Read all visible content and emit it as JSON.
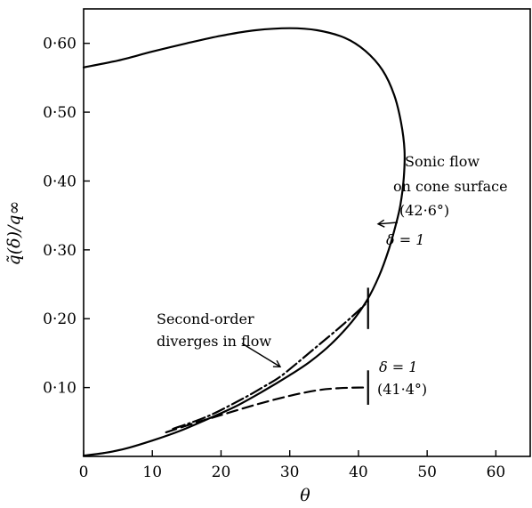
{
  "chart_data": {
    "type": "line",
    "title": "",
    "xlabel": "θ",
    "ylabel": "q̃(δ)/q∞",
    "xlim": [
      0,
      65
    ],
    "ylim": [
      0,
      0.65
    ],
    "grid": false,
    "x_ticks": [
      {
        "value": 0,
        "label": "0"
      },
      {
        "value": 10,
        "label": "10"
      },
      {
        "value": 20,
        "label": "20"
      },
      {
        "value": 30,
        "label": "30"
      },
      {
        "value": 40,
        "label": "40"
      },
      {
        "value": 50,
        "label": "50"
      },
      {
        "value": 60,
        "label": "60"
      }
    ],
    "y_ticks": [
      {
        "value": 0.1,
        "label": "0·10"
      },
      {
        "value": 0.2,
        "label": "0·20"
      },
      {
        "value": 0.3,
        "label": "0·30"
      },
      {
        "value": 0.4,
        "label": "0·40"
      },
      {
        "value": 0.5,
        "label": "0·50"
      },
      {
        "value": 0.6,
        "label": "0·60"
      }
    ],
    "series": [
      {
        "style": "solid",
        "points": [
          [
            0,
            0.565
          ],
          [
            5,
            0.575
          ],
          [
            10,
            0.588
          ],
          [
            15,
            0.6
          ],
          [
            20,
            0.611
          ],
          [
            25,
            0.619
          ],
          [
            30,
            0.622
          ],
          [
            34,
            0.619
          ],
          [
            38,
            0.608
          ],
          [
            41,
            0.589
          ],
          [
            43.5,
            0.561
          ],
          [
            45.2,
            0.525
          ],
          [
            46.2,
            0.485
          ],
          [
            46.7,
            0.445
          ],
          [
            46.6,
            0.405
          ],
          [
            46.1,
            0.365
          ],
          [
            45.4,
            0.335
          ],
          [
            44.4,
            0.3
          ],
          [
            43.0,
            0.262
          ],
          [
            41.2,
            0.226
          ],
          [
            39.0,
            0.195
          ],
          [
            36.0,
            0.163
          ],
          [
            33.0,
            0.138
          ],
          [
            30.0,
            0.118
          ],
          [
            26.0,
            0.094
          ],
          [
            22.0,
            0.072
          ],
          [
            18.0,
            0.054
          ],
          [
            14.0,
            0.037
          ],
          [
            10.0,
            0.023
          ],
          [
            6.0,
            0.011
          ],
          [
            3.0,
            0.005
          ],
          [
            0,
            0.001
          ]
        ]
      },
      {
        "style": "dash-dot",
        "points": [
          [
            13.0,
            0.04
          ],
          [
            18.0,
            0.058
          ],
          [
            23.0,
            0.083
          ],
          [
            26.0,
            0.1
          ],
          [
            28.5,
            0.115
          ],
          [
            31.0,
            0.135
          ],
          [
            34.0,
            0.16
          ],
          [
            37.0,
            0.185
          ],
          [
            39.5,
            0.207
          ],
          [
            41.4,
            0.225
          ]
        ]
      },
      {
        "style": "dashed",
        "points": [
          [
            12.0,
            0.035
          ],
          [
            16.0,
            0.048
          ],
          [
            20.0,
            0.06
          ],
          [
            25.0,
            0.075
          ],
          [
            30.0,
            0.088
          ],
          [
            34.0,
            0.096
          ],
          [
            37.0,
            0.099
          ],
          [
            40.0,
            0.1
          ],
          [
            41.4,
            0.1
          ]
        ]
      }
    ],
    "markers": [
      {
        "x": 41.4,
        "y_from": 0.185,
        "y_to": 0.245
      },
      {
        "x": 41.4,
        "y_from": 0.075,
        "y_to": 0.125
      }
    ],
    "annotations": [
      {
        "lines": [
          "Sonic flow",
          "on cone surface",
          "(42·6°)"
        ],
        "arrow_to": [
          42.6,
          0.335
        ]
      },
      {
        "lines": [
          "Second-order",
          "diverges in flow"
        ],
        "arrow_to": [
          29.0,
          0.125
        ]
      },
      {
        "lines": [
          "δ = 1"
        ],
        "for_series": "dash-dot"
      },
      {
        "lines": [
          "δ = 1",
          "(41·4°)"
        ],
        "for_series": "dashed"
      }
    ]
  }
}
